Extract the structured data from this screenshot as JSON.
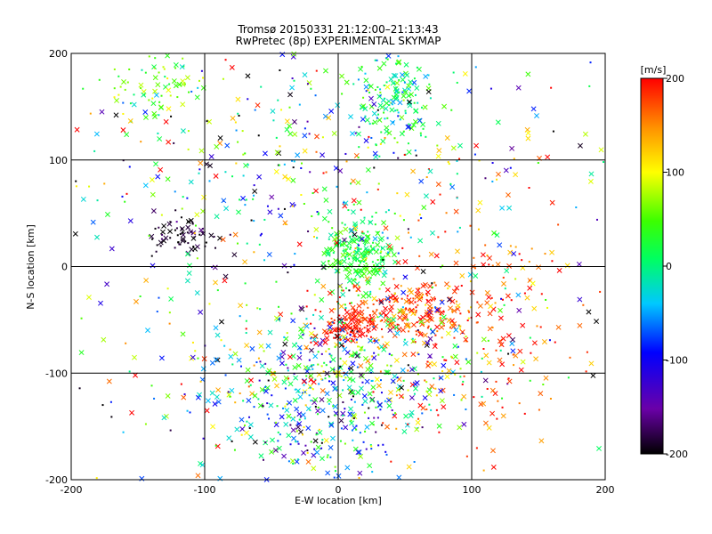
{
  "chart_data": {
    "type": "scatter",
    "title": "Tromsø 20150331 21:12:00–21:13:43",
    "subtitle": "RwPretec (8p) EXPERIMENTAL SKYMAP",
    "xlabel": "E-W location [km]",
    "ylabel": "N-S location [km]",
    "xlim": [
      -200,
      200
    ],
    "ylim": [
      -200,
      200
    ],
    "xticks": [
      "-200",
      "-100",
      "0",
      "100",
      "200"
    ],
    "yticks": [
      "-200",
      "-100",
      "0",
      "100",
      "200"
    ],
    "grid": true,
    "colorbar": {
      "label": "[m/s]",
      "range": [
        -200,
        200
      ],
      "ticks": [
        "-200",
        "-100",
        "0",
        "100",
        "200"
      ],
      "colormap": "rainbow (black-purple-blue-cyan-green-yellow-red)"
    },
    "marker_types": [
      "x",
      "dot"
    ],
    "clusters": [
      {
        "x": 15,
        "y": 10,
        "sx": 12,
        "sy": 18,
        "n": 220,
        "v": 20,
        "vs": 25
      },
      {
        "x": 45,
        "y": 160,
        "sx": 18,
        "sy": 30,
        "n": 180,
        "v": 10,
        "vs": 40
      },
      {
        "x": 55,
        "y": -45,
        "sx": 28,
        "sy": 12,
        "n": 200,
        "v": 175,
        "vs": 30
      },
      {
        "x": 10,
        "y": -55,
        "sx": 12,
        "sy": 8,
        "n": 90,
        "v": 195,
        "vs": 10
      },
      {
        "x": -115,
        "y": 30,
        "sx": 12,
        "sy": 8,
        "n": 70,
        "v": -190,
        "vs": 15
      },
      {
        "x": -130,
        "y": 165,
        "sx": 18,
        "sy": 15,
        "n": 70,
        "v": 60,
        "vs": 30
      },
      {
        "x": 5,
        "y": -95,
        "sx": 55,
        "sy": 30,
        "n": 400,
        "v": 0,
        "vs": 110
      },
      {
        "x": -20,
        "y": -150,
        "sx": 30,
        "sy": 25,
        "n": 160,
        "v": -50,
        "vs": 90
      },
      {
        "x": 110,
        "y": -50,
        "sx": 50,
        "sy": 70,
        "n": 220,
        "v": 170,
        "vs": 40
      },
      {
        "x": 0,
        "y": 0,
        "sx": 120,
        "sy": 120,
        "n": 550,
        "v": 0,
        "vs": 120
      },
      {
        "x": -40,
        "y": 100,
        "sx": 70,
        "sy": 50,
        "n": 160,
        "v": -20,
        "vs": 110
      }
    ]
  }
}
